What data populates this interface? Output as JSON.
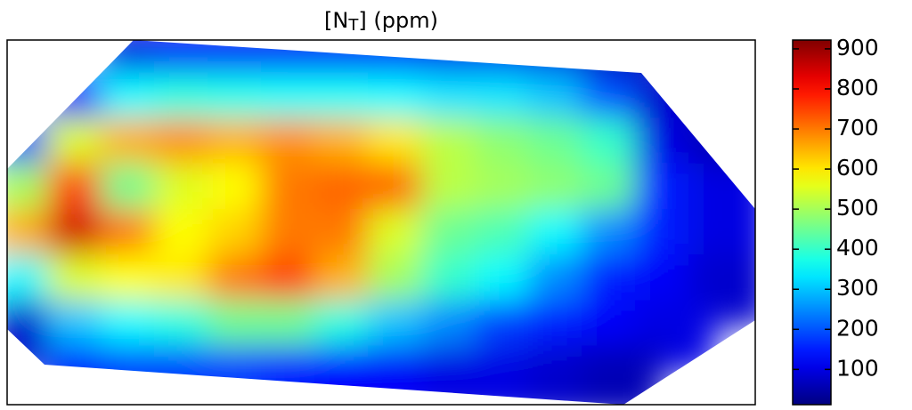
{
  "chart_data": {
    "type": "heatmap",
    "title_parts": [
      "[N",
      "T",
      "] (ppm)"
    ],
    "colormap": "jet",
    "zlim": [
      12,
      922
    ],
    "zticks": [
      100,
      200,
      300,
      400,
      500,
      600,
      700,
      800,
      900
    ],
    "values": [
      [
        null,
        null,
        100,
        120,
        120,
        120,
        120,
        120,
        110,
        110,
        100,
        60,
        null,
        null
      ],
      [
        null,
        150,
        350,
        380,
        370,
        360,
        360,
        350,
        330,
        330,
        300,
        200,
        80,
        null
      ],
      [
        200,
        550,
        650,
        680,
        650,
        680,
        650,
        600,
        520,
        480,
        450,
        400,
        100,
        60
      ],
      [
        500,
        750,
        450,
        550,
        580,
        700,
        720,
        720,
        520,
        500,
        480,
        450,
        150,
        100
      ],
      [
        650,
        850,
        700,
        580,
        620,
        700,
        700,
        550,
        450,
        420,
        350,
        250,
        150,
        100
      ],
      [
        350,
        550,
        580,
        600,
        700,
        750,
        650,
        500,
        400,
        350,
        250,
        150,
        120,
        80
      ],
      [
        80,
        300,
        350,
        380,
        450,
        450,
        380,
        300,
        250,
        180,
        150,
        120,
        100,
        null
      ],
      [
        null,
        150,
        180,
        180,
        180,
        150,
        130,
        120,
        100,
        100,
        80,
        60,
        null,
        null
      ]
    ]
  }
}
